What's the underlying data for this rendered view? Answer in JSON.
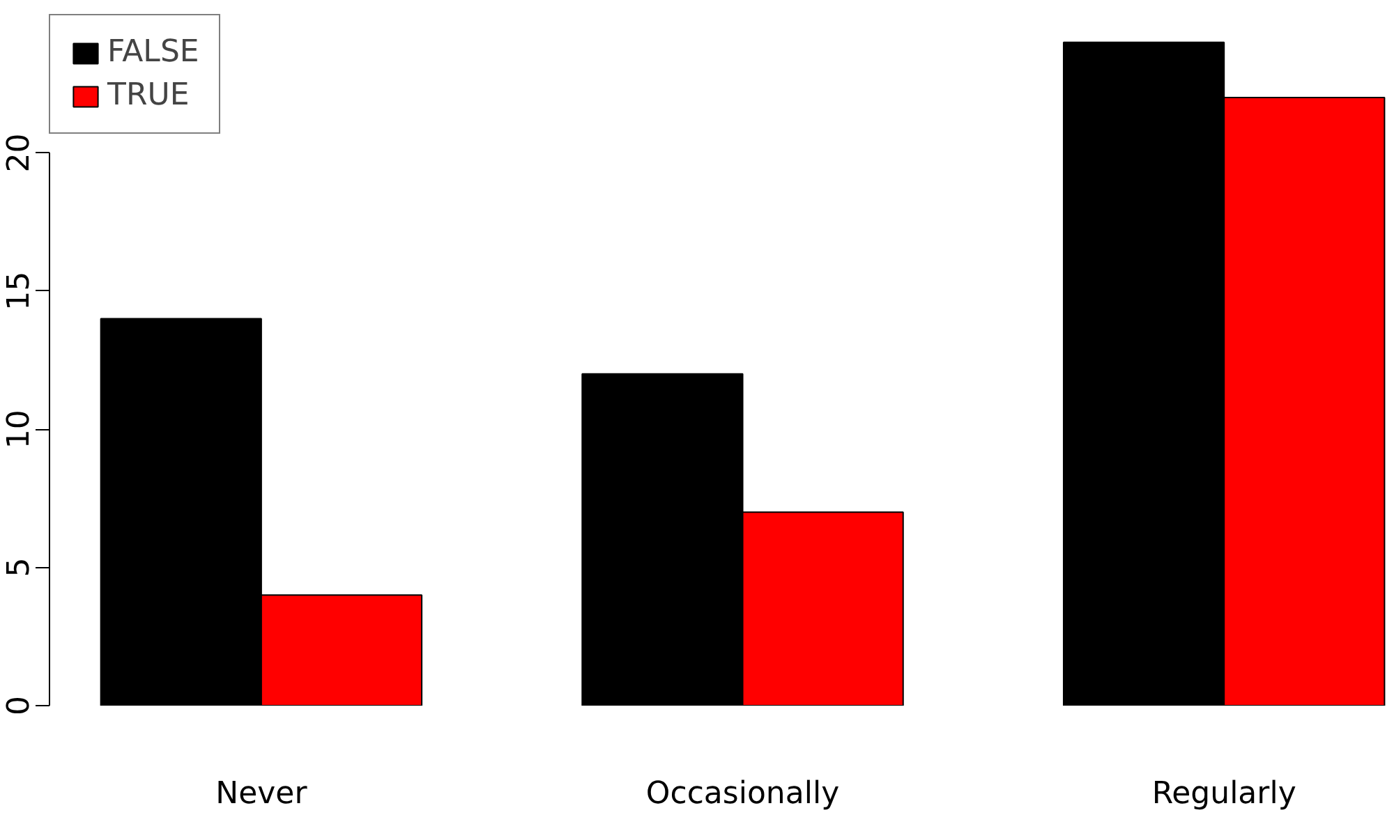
{
  "chart_data": {
    "type": "bar",
    "categories": [
      "Never",
      "Occasionally",
      "Regularly"
    ],
    "series": [
      {
        "name": "FALSE",
        "color": "#000000",
        "values": [
          14,
          12,
          24
        ]
      },
      {
        "name": "TRUE",
        "color": "#ff0000",
        "values": [
          4,
          7,
          22
        ]
      }
    ],
    "ylim": [
      0,
      25
    ],
    "yticks": [
      0,
      5,
      10,
      15,
      20
    ],
    "grid": false,
    "legend": "top left"
  }
}
